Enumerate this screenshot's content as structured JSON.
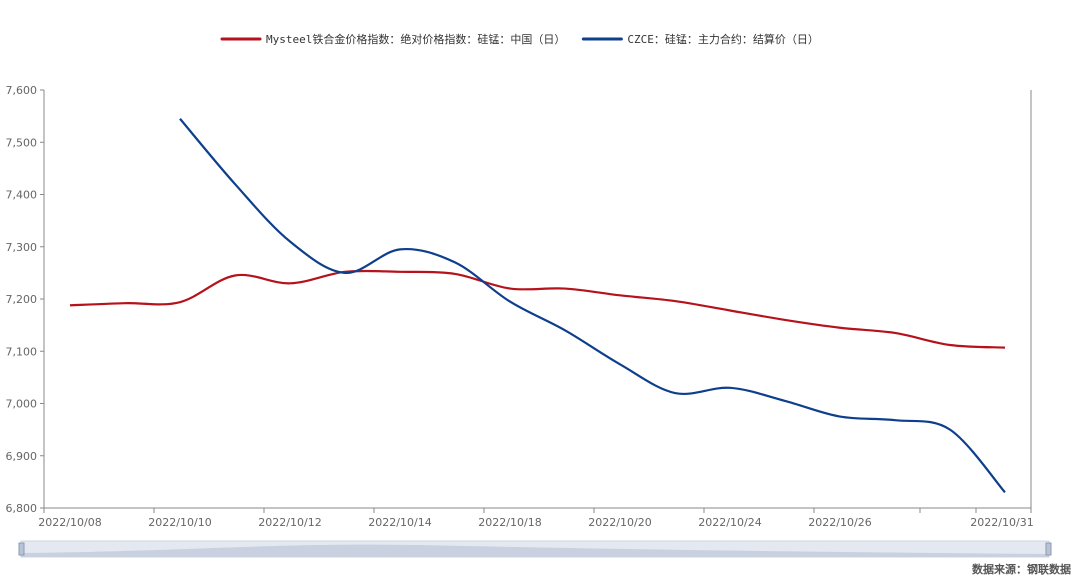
{
  "chart_data": {
    "type": "line",
    "x": [
      "2022/10/08",
      "2022/10/09",
      "2022/10/10",
      "2022/10/11",
      "2022/10/12",
      "2022/10/13",
      "2022/10/14",
      "2022/10/17",
      "2022/10/18",
      "2022/10/19",
      "2022/10/20",
      "2022/10/21",
      "2022/10/24",
      "2022/10/25",
      "2022/10/26",
      "2022/10/27",
      "2022/10/28",
      "2022/10/31"
    ],
    "x_tick_labels": [
      "2022/10/08",
      "2022/10/10",
      "2022/10/12",
      "2022/10/14",
      "2022/10/18",
      "2022/10/20",
      "2022/10/24",
      "2022/10/26",
      "2022/10/31"
    ],
    "series": [
      {
        "name": "Mysteel铁合金价格指数：绝对价格指数：硅锰：中国（日）",
        "color": "#b5121b",
        "values": [
          7188,
          7192,
          7194,
          7245,
          7230,
          7252,
          7252,
          7248,
          7220,
          7220,
          7207,
          7196,
          7178,
          7160,
          7145,
          7135,
          7112,
          7107
        ]
      },
      {
        "name": "CZCE：硅锰：主力合约：结算价（日）",
        "color": "#0e3f8c",
        "values": [
          null,
          null,
          7545,
          7420,
          7310,
          7250,
          7295,
          7270,
          7195,
          7140,
          7075,
          7020,
          7030,
          7005,
          6975,
          6968,
          6950,
          6830
        ]
      }
    ],
    "ylim": [
      6800,
      7600
    ],
    "y_ticks": [
      "6,800",
      "6,900",
      "7,000",
      "7,100",
      "7,200",
      "7,300",
      "7,400",
      "7,500",
      "7,600"
    ],
    "grid": false,
    "legend_position": "top-center"
  },
  "source_text": "数据来源：钢联数据"
}
